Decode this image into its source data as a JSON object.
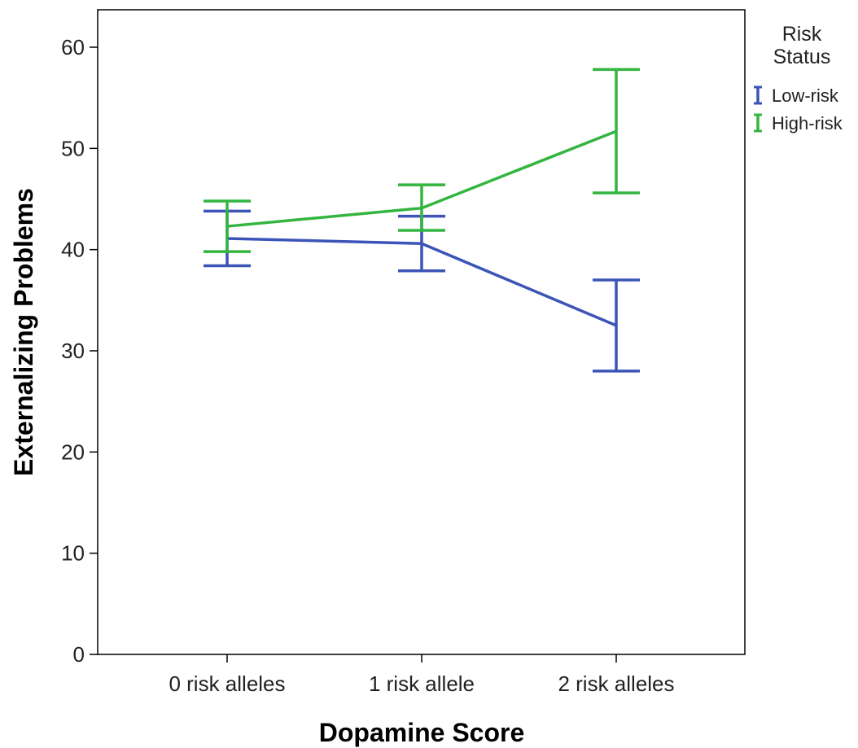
{
  "chart_data": {
    "type": "line",
    "xlabel": "Dopamine Score",
    "ylabel": "Externalizing Problems",
    "categories": [
      "0 risk alleles",
      "1 risk allele",
      "2 risk alleles"
    ],
    "ylim": [
      0,
      65
    ],
    "yticks": [
      0,
      10,
      20,
      30,
      40,
      50,
      60
    ],
    "grid": false,
    "error_bars": true,
    "legend": {
      "title": "Risk Status",
      "title_lines": [
        "Risk",
        "Status"
      ],
      "placement": "top-right-outside"
    },
    "series": [
      {
        "name": "Low-risk",
        "color": "#3c54b8",
        "values": [
          41.1,
          40.6,
          32.5
        ],
        "lower": [
          38.4,
          37.9,
          28.0
        ],
        "upper": [
          43.8,
          43.3,
          37.0
        ]
      },
      {
        "name": "High-risk",
        "color": "#33b540",
        "values": [
          42.3,
          44.1,
          51.7
        ],
        "lower": [
          39.8,
          41.9,
          45.6
        ],
        "upper": [
          44.8,
          46.4,
          57.8
        ]
      }
    ]
  }
}
